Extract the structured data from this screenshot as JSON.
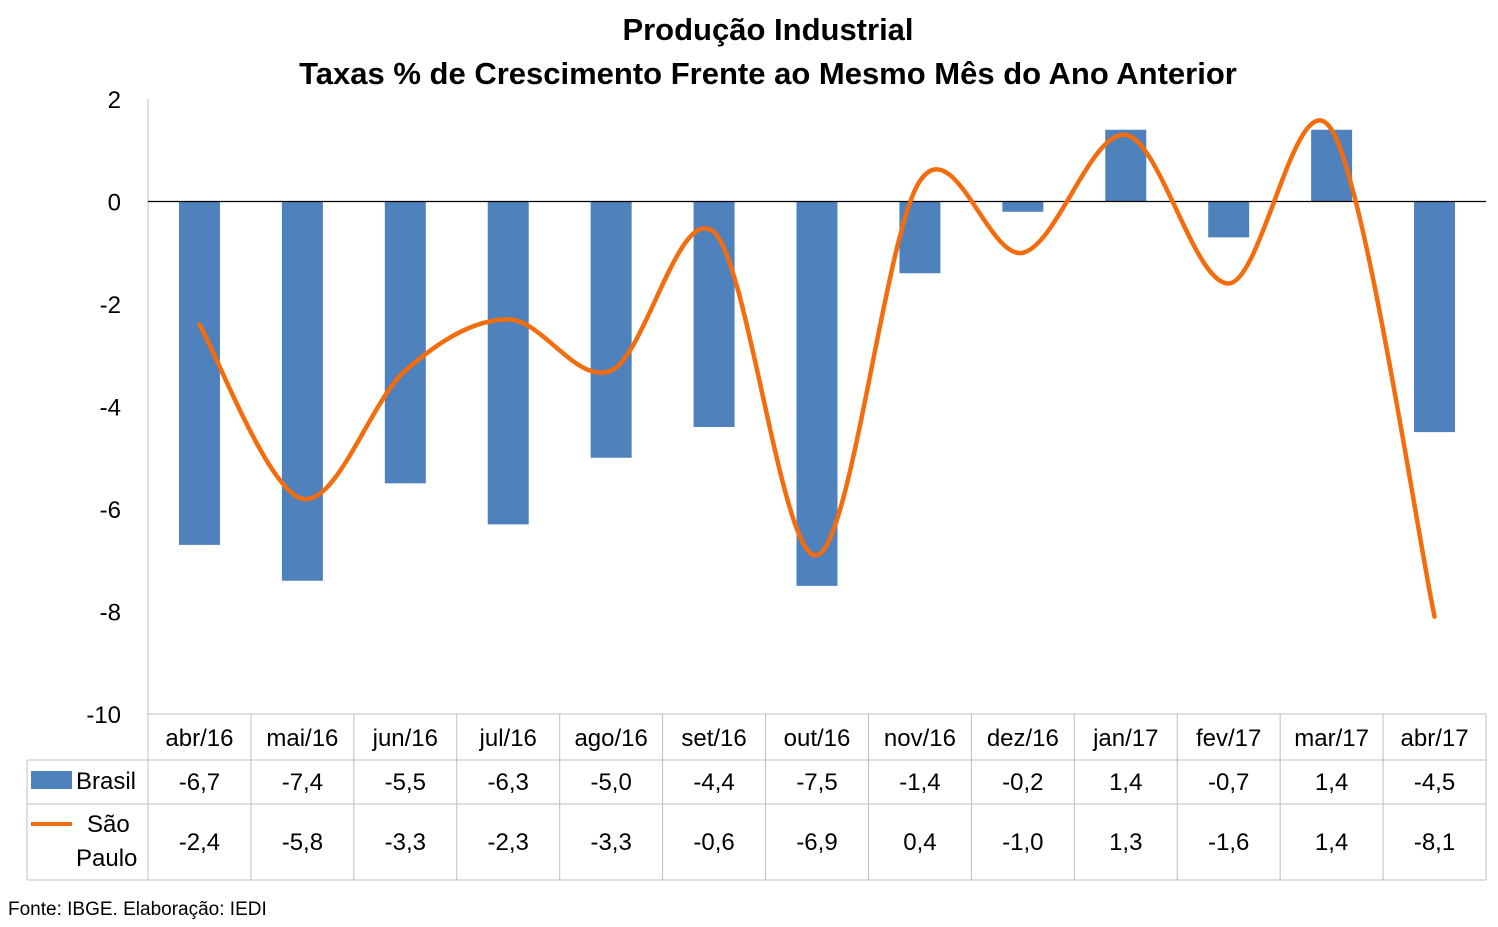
{
  "chart_data": {
    "type": "bar",
    "title": "Produção Industrial",
    "subtitle": "Taxas % de Crescimento Frente ao Mesmo Mês do Ano Anterior",
    "categories": [
      "abr/16",
      "mai/16",
      "jun/16",
      "jul/16",
      "ago/16",
      "set/16",
      "out/16",
      "nov/16",
      "dez/16",
      "jan/17",
      "fev/17",
      "mar/17",
      "abr/17"
    ],
    "series": [
      {
        "name": "Brasil",
        "type": "bar",
        "color": "#4F81BD",
        "values": [
          -6.7,
          -7.4,
          -5.5,
          -6.3,
          -5.0,
          -4.4,
          -7.5,
          -1.4,
          -0.2,
          1.4,
          -0.7,
          1.4,
          -4.5
        ],
        "labels": [
          "-6,7",
          "-7,4",
          "-5,5",
          "-6,3",
          "-5,0",
          "-4,4",
          "-7,5",
          "-1,4",
          "-0,2",
          "1,4",
          "-0,7",
          "1,4",
          "-4,5"
        ]
      },
      {
        "name": "São Paulo",
        "type": "line",
        "smooth": true,
        "color": "#F36C0D",
        "values": [
          -2.4,
          -5.8,
          -3.3,
          -2.3,
          -3.3,
          -0.6,
          -6.9,
          0.4,
          -1.0,
          1.3,
          -1.6,
          1.4,
          -8.1
        ],
        "labels": [
          "-2,4",
          "-5,8",
          "-3,3",
          "-2,3",
          "-3,3",
          "-0,6",
          "-6,9",
          "0,4",
          "-1,0",
          "1,3",
          "-1,6",
          "1,4",
          "-8,1"
        ]
      }
    ],
    "ylim": [
      -10,
      2
    ],
    "yticks": [
      2,
      0,
      -2,
      -4,
      -6,
      -8,
      -10
    ],
    "xlabel": "",
    "ylabel": "",
    "grid": false,
    "legend": "data-table"
  },
  "legend_labels": {
    "brasil": "Brasil",
    "sao_paulo_line1": "São",
    "sao_paulo_line2": "Paulo"
  },
  "source": "Fonte: IBGE. Elaboração: IEDI"
}
